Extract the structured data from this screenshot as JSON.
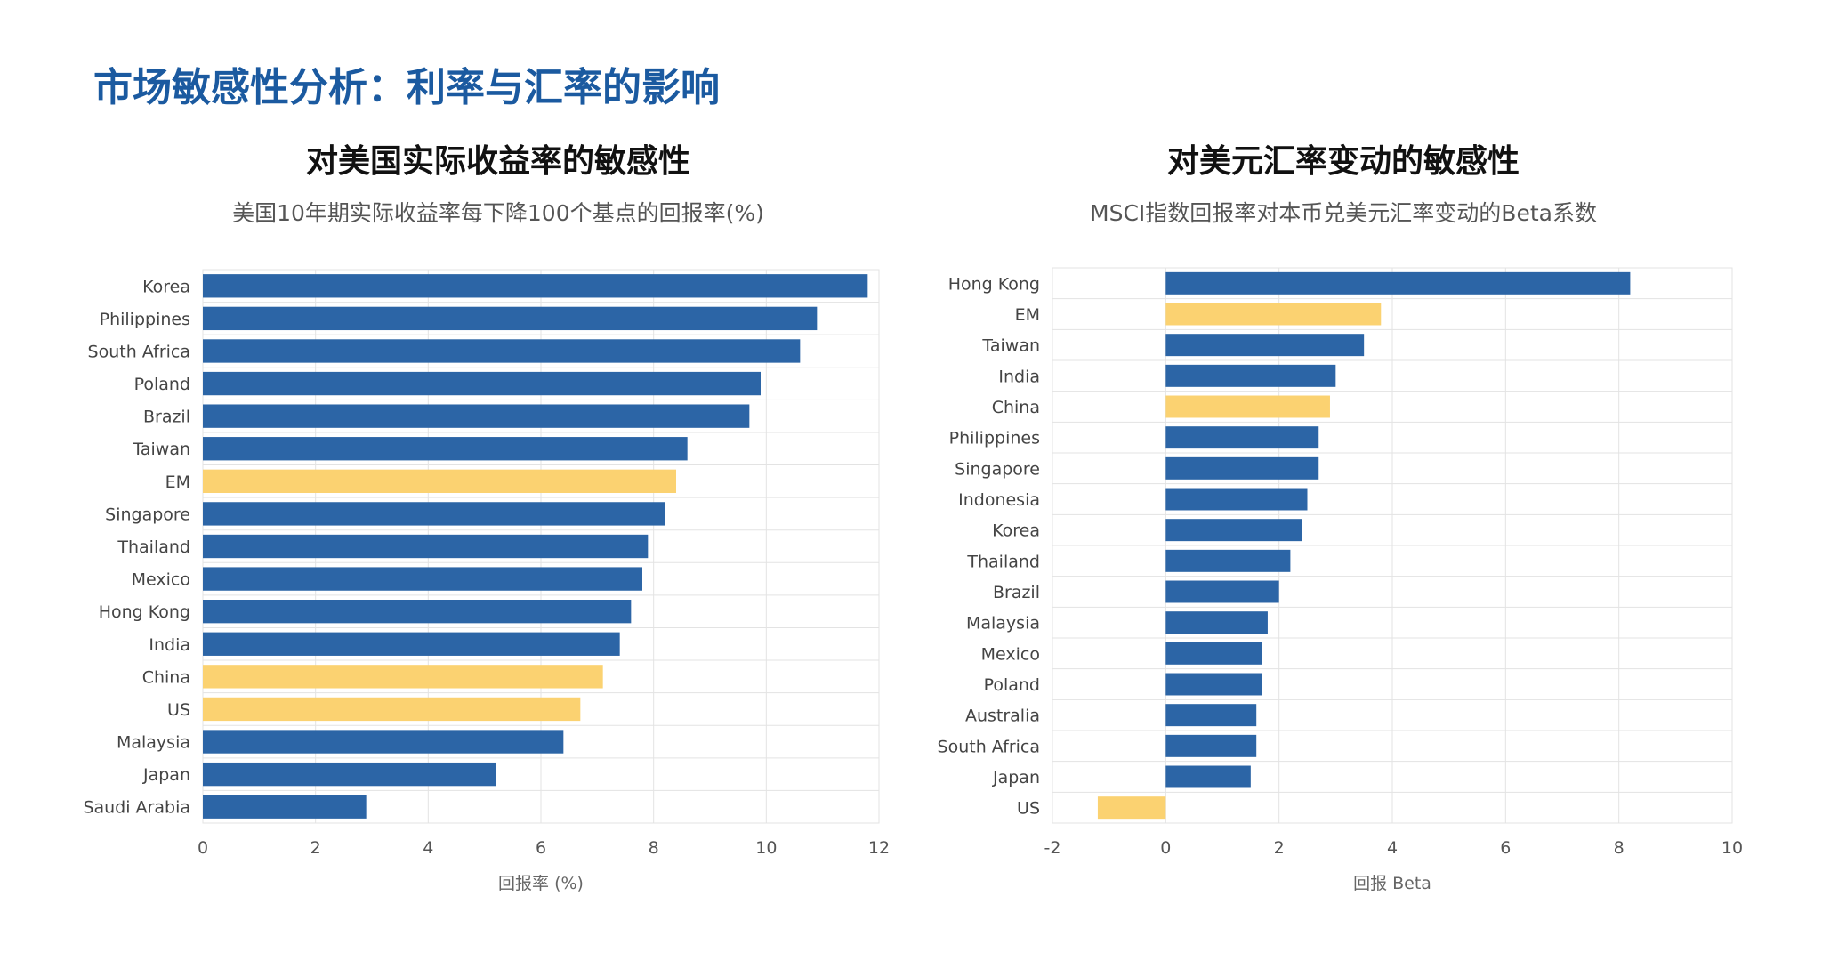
{
  "page": {
    "title": "市场敏感性分析：利率与汇率的影响"
  },
  "colors": {
    "title": "#1b5aa0",
    "bar_primary": "#2c65a6",
    "bar_highlight": "#fbd271",
    "grid": "#e3e3e3"
  },
  "chart_data": [
    {
      "type": "bar",
      "orientation": "horizontal",
      "title": "对美国实际收益率的敏感性",
      "subtitle": "美国10年期实际收益率每下降100个基点的回报率(%)",
      "xlabel": "回报率 (%)",
      "ylabel": "",
      "xlim": [
        0,
        12
      ],
      "xticks": [
        "0",
        "2",
        "4",
        "6",
        "8",
        "10",
        "12"
      ],
      "grid": true,
      "categories": [
        "Korea",
        "Philippines",
        "South Africa",
        "Poland",
        "Brazil",
        "Taiwan",
        "EM",
        "Singapore",
        "Thailand",
        "Mexico",
        "Hong Kong",
        "India",
        "China",
        "US",
        "Malaysia",
        "Japan",
        "Saudi Arabia"
      ],
      "values": [
        11.8,
        10.9,
        10.6,
        9.9,
        9.7,
        8.6,
        8.4,
        8.2,
        7.9,
        7.8,
        7.6,
        7.4,
        7.1,
        6.7,
        6.4,
        5.2,
        2.9
      ],
      "highlight": [
        "EM",
        "China",
        "US"
      ]
    },
    {
      "type": "bar",
      "orientation": "horizontal",
      "title": "对美元汇率变动的敏感性",
      "subtitle": "MSCI指数回报率对本币兑美元汇率变动的Beta系数",
      "xlabel": "回报 Beta",
      "ylabel": "",
      "xlim": [
        -2,
        10
      ],
      "xticks": [
        "-2",
        "0",
        "2",
        "4",
        "6",
        "8",
        "10"
      ],
      "grid": true,
      "categories": [
        "Hong Kong",
        "EM",
        "Taiwan",
        "India",
        "China",
        "Philippines",
        "Singapore",
        "Indonesia",
        "Korea",
        "Thailand",
        "Brazil",
        "Malaysia",
        "Mexico",
        "Poland",
        "Australia",
        "South Africa",
        "Japan",
        "US"
      ],
      "values": [
        8.2,
        3.8,
        3.5,
        3.0,
        2.9,
        2.7,
        2.7,
        2.5,
        2.4,
        2.2,
        2.0,
        1.8,
        1.7,
        1.7,
        1.6,
        1.6,
        1.5,
        -1.2
      ],
      "highlight": [
        "EM",
        "China",
        "US"
      ]
    }
  ]
}
